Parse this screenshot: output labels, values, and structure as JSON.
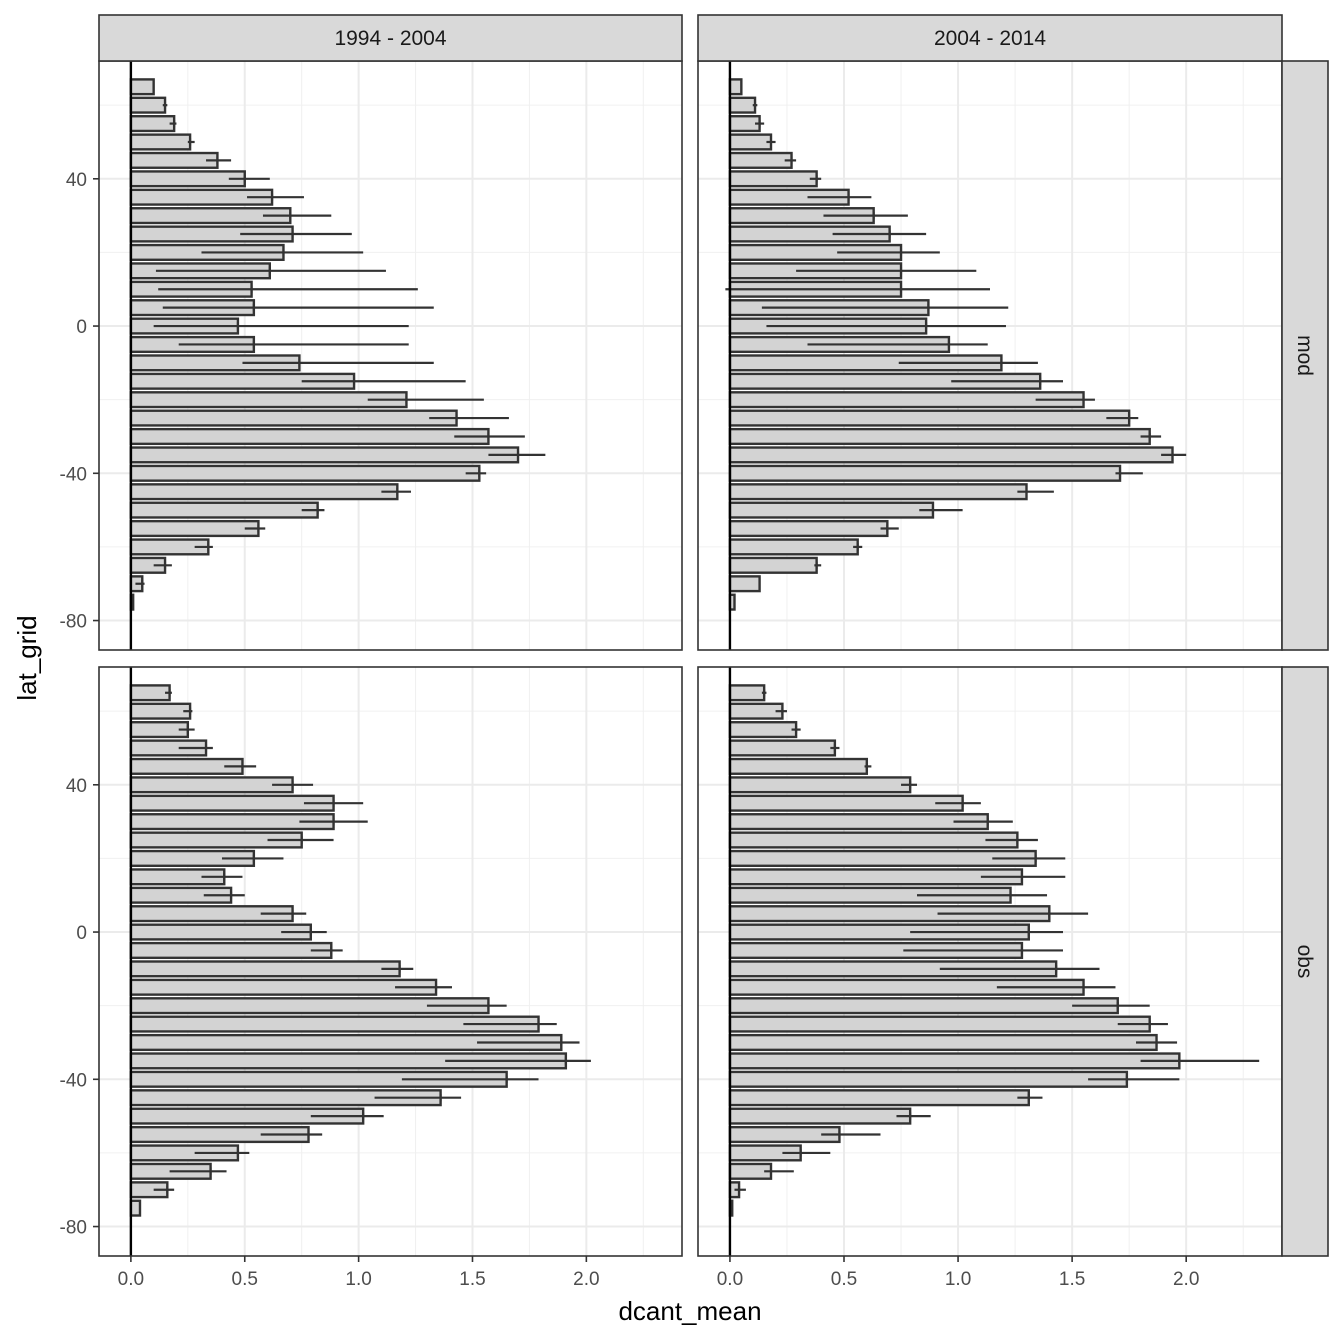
{
  "chart_data": {
    "type": "bar",
    "orientation": "horizontal",
    "xlabel": "dcant_mean",
    "ylabel": "lat_grid",
    "xlim": [
      -0.14,
      2.42
    ],
    "ylim": [
      -88,
      72
    ],
    "x_ticks": [
      0.0,
      0.5,
      1.0,
      1.5,
      2.0
    ],
    "x_tick_labels": [
      "0.0",
      "0.5",
      "1.0",
      "1.5",
      "2.0"
    ],
    "y_ticks": [
      -80,
      -40,
      0,
      40
    ],
    "y_tick_labels": [
      "-80",
      "-40",
      "0",
      "40"
    ],
    "column_facets": [
      "1994 - 2004",
      "2004 - 2014"
    ],
    "row_facets": [
      "mod",
      "obs"
    ],
    "lat_grid": [
      65,
      60,
      55,
      50,
      45,
      40,
      35,
      30,
      25,
      20,
      15,
      10,
      5,
      0,
      -5,
      -10,
      -15,
      -20,
      -25,
      -30,
      -35,
      -40,
      -45,
      -50,
      -55,
      -60,
      -65,
      -70,
      -75,
      -80
    ],
    "panels": [
      {
        "col": "1994 - 2004",
        "row": "mod",
        "values": [
          0.1,
          0.15,
          0.19,
          0.26,
          0.38,
          0.5,
          0.62,
          0.7,
          0.71,
          0.67,
          0.61,
          0.53,
          0.54,
          0.47,
          0.54,
          0.74,
          0.98,
          1.21,
          1.43,
          1.57,
          1.7,
          1.53,
          1.17,
          0.82,
          0.56,
          0.34,
          0.15,
          0.05,
          0.01,
          null
        ],
        "err_low": [
          null,
          0.14,
          0.17,
          0.25,
          0.33,
          0.43,
          0.51,
          0.58,
          0.48,
          0.31,
          0.11,
          0.12,
          0.14,
          0.1,
          0.21,
          0.49,
          0.75,
          1.04,
          1.31,
          1.42,
          1.57,
          1.47,
          1.1,
          0.75,
          0.5,
          0.28,
          0.1,
          0.02,
          null,
          null
        ],
        "err_high": [
          null,
          0.16,
          0.2,
          0.28,
          0.44,
          0.61,
          0.76,
          0.88,
          0.97,
          1.02,
          1.12,
          1.26,
          1.33,
          1.22,
          1.22,
          1.33,
          1.47,
          1.55,
          1.66,
          1.73,
          1.82,
          1.56,
          1.23,
          0.85,
          0.59,
          0.36,
          0.18,
          0.06,
          null,
          null
        ]
      },
      {
        "col": "2004 - 2014",
        "row": "mod",
        "values": [
          0.05,
          0.11,
          0.13,
          0.18,
          0.27,
          0.38,
          0.52,
          0.63,
          0.7,
          0.75,
          0.75,
          0.75,
          0.87,
          0.86,
          0.96,
          1.19,
          1.36,
          1.55,
          1.75,
          1.84,
          1.94,
          1.71,
          1.3,
          0.89,
          0.69,
          0.56,
          0.38,
          0.13,
          0.02,
          null
        ],
        "err_low": [
          null,
          0.1,
          0.11,
          0.16,
          0.24,
          0.35,
          0.34,
          0.41,
          0.45,
          0.47,
          0.29,
          -0.02,
          0.14,
          0.16,
          0.34,
          0.74,
          0.97,
          1.34,
          1.65,
          1.8,
          1.89,
          1.69,
          1.26,
          0.83,
          0.66,
          0.54,
          0.37,
          null,
          null,
          null
        ],
        "err_high": [
          null,
          0.12,
          0.15,
          0.2,
          0.29,
          0.4,
          0.62,
          0.78,
          0.86,
          0.92,
          1.08,
          1.14,
          1.22,
          1.21,
          1.13,
          1.35,
          1.46,
          1.6,
          1.79,
          1.89,
          2.0,
          1.81,
          1.42,
          1.02,
          0.74,
          0.58,
          0.4,
          null,
          null,
          null
        ]
      },
      {
        "col": "1994 - 2004",
        "row": "obs",
        "values": [
          0.17,
          0.26,
          0.25,
          0.33,
          0.49,
          0.71,
          0.89,
          0.89,
          0.75,
          0.54,
          0.41,
          0.44,
          0.71,
          0.79,
          0.88,
          1.18,
          1.34,
          1.57,
          1.79,
          1.89,
          1.91,
          1.65,
          1.36,
          1.02,
          0.78,
          0.47,
          0.35,
          0.16,
          0.04,
          null
        ],
        "err_low": [
          0.15,
          0.23,
          0.21,
          0.21,
          0.41,
          0.62,
          0.76,
          0.74,
          0.6,
          0.4,
          0.31,
          0.32,
          0.57,
          0.66,
          0.79,
          1.1,
          1.16,
          1.3,
          1.46,
          1.52,
          1.38,
          1.19,
          1.07,
          0.79,
          0.57,
          0.28,
          0.17,
          0.1,
          null,
          null
        ],
        "err_high": [
          0.18,
          0.27,
          0.28,
          0.36,
          0.55,
          0.8,
          1.02,
          1.04,
          0.89,
          0.67,
          0.49,
          0.5,
          0.77,
          0.86,
          0.93,
          1.24,
          1.41,
          1.65,
          1.87,
          1.97,
          2.02,
          1.79,
          1.45,
          1.11,
          0.84,
          0.52,
          0.42,
          0.19,
          null,
          null
        ]
      },
      {
        "col": "2004 - 2014",
        "row": "obs",
        "values": [
          0.15,
          0.23,
          0.29,
          0.46,
          0.6,
          0.79,
          1.02,
          1.13,
          1.26,
          1.34,
          1.28,
          1.23,
          1.4,
          1.31,
          1.28,
          1.43,
          1.55,
          1.7,
          1.84,
          1.87,
          1.97,
          1.74,
          1.31,
          0.79,
          0.48,
          0.31,
          0.18,
          0.04,
          0.01,
          null
        ],
        "err_low": [
          0.14,
          0.2,
          0.27,
          0.44,
          0.59,
          0.75,
          0.9,
          0.98,
          1.12,
          1.15,
          1.1,
          0.82,
          0.91,
          0.79,
          0.76,
          0.92,
          1.17,
          1.5,
          1.7,
          1.78,
          1.8,
          1.57,
          1.26,
          0.73,
          0.4,
          0.23,
          0.15,
          0.02,
          null,
          null
        ],
        "err_high": [
          0.16,
          0.25,
          0.31,
          0.48,
          0.62,
          0.82,
          1.1,
          1.24,
          1.35,
          1.47,
          1.47,
          1.39,
          1.57,
          1.46,
          1.46,
          1.62,
          1.69,
          1.84,
          1.92,
          1.96,
          2.32,
          1.97,
          1.37,
          0.88,
          0.66,
          0.44,
          0.28,
          0.07,
          null,
          null
        ]
      }
    ]
  }
}
